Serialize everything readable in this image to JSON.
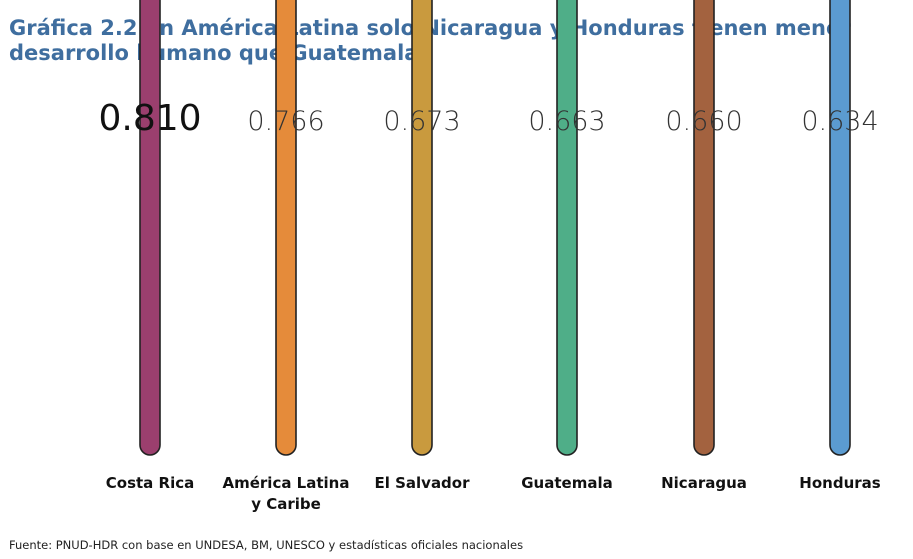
{
  "title": "Gráfica 2.2 En América Latina solo Nicaragua y Honduras tienen menor desarrollo humano que Guatemala",
  "source": "Fuente: PNUD-HDR con base en UNDESA, BM, UNESCO y estadísticas oficiales nacionales",
  "chart_data": {
    "type": "bar",
    "title": "Gráfica 2.2 En América Latina solo Nicaragua y Honduras tienen menor desarrollo humano que Guatemala",
    "categories": [
      "Costa Rica",
      "América Latina y Caribe",
      "El Salvador",
      "Guatemala",
      "Nicaragua",
      "Honduras"
    ],
    "category_lines": [
      [
        "Costa Rica"
      ],
      [
        "América Latina",
        "y Caribe"
      ],
      [
        "El Salvador"
      ],
      [
        "Guatemala"
      ],
      [
        "Nicaragua"
      ],
      [
        "Honduras"
      ]
    ],
    "values": [
      0.81,
      0.766,
      0.673,
      0.663,
      0.66,
      0.634
    ],
    "value_labels": [
      "0.810",
      "0.766",
      "0.673",
      "0.663",
      "0.660",
      "0.634"
    ],
    "colors": [
      "#9b3f6e",
      "#e58b3a",
      "#c99a3e",
      "#4fae88",
      "#a3623f",
      "#5b9bd0"
    ],
    "highlighted_index": 0,
    "grid": false,
    "legend": "none"
  }
}
